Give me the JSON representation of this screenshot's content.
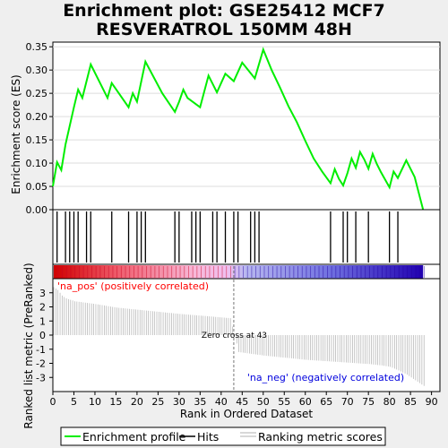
{
  "title_line1": "Enrichment plot: GSE25412 MCF7",
  "title_line2": "RESVERATROL 150MM 48H",
  "colors": {
    "enrichment_line": "#00ee00",
    "hits": "#000000",
    "ranking_metric": "#b0b0b0",
    "pos_label": "#ff0000",
    "neg_label": "#0000dd",
    "panel_bg": "#ffffff",
    "page_bg": "#efefef"
  },
  "chart_data": [
    {
      "type": "line",
      "name": "enrichment-profile",
      "ylabel": "Enrichment score (ES)",
      "ylim": [
        0.0,
        0.36
      ],
      "xlim": [
        0,
        92
      ],
      "yticks": [
        0.0,
        0.05,
        0.1,
        0.15,
        0.2,
        0.25,
        0.3,
        0.35
      ],
      "ytick_labels": [
        "0.00",
        "0.05",
        "0.10",
        "0.15",
        "0.20",
        "0.25",
        "0.30",
        "0.35"
      ],
      "x": [
        0,
        1,
        2,
        3,
        5,
        6,
        7,
        9,
        13,
        14,
        18,
        19,
        20,
        22,
        26,
        29,
        30,
        31,
        32,
        35,
        37,
        38,
        39,
        40,
        41,
        43,
        45,
        48,
        50,
        52,
        54,
        56,
        58,
        60,
        62,
        64,
        66,
        67,
        68,
        69,
        70,
        71,
        72,
        73,
        74,
        75,
        76,
        77,
        78,
        79,
        80,
        81,
        82,
        84,
        86,
        88
      ],
      "y": [
        0.05,
        0.102,
        0.085,
        0.14,
        0.22,
        0.258,
        0.24,
        0.312,
        0.24,
        0.272,
        0.22,
        0.25,
        0.232,
        0.318,
        0.25,
        0.21,
        0.232,
        0.258,
        0.24,
        0.22,
        0.288,
        0.27,
        0.252,
        0.272,
        0.292,
        0.276,
        0.316,
        0.282,
        0.344,
        0.3,
        0.262,
        0.222,
        0.188,
        0.148,
        0.11,
        0.082,
        0.057,
        0.087,
        0.066,
        0.052,
        0.078,
        0.11,
        0.09,
        0.124,
        0.108,
        0.088,
        0.12,
        0.098,
        0.08,
        0.064,
        0.048,
        0.082,
        0.068,
        0.106,
        0.07,
        0.0
      ]
    },
    {
      "type": "scatter",
      "name": "hits",
      "x": [
        1,
        3,
        4,
        5,
        6,
        8,
        9,
        14,
        18,
        20,
        21,
        22,
        29,
        30,
        33,
        34,
        35,
        38,
        39,
        41,
        43,
        44,
        47,
        48,
        49,
        66,
        69,
        70,
        72,
        75,
        80,
        82
      ]
    },
    {
      "type": "area",
      "name": "ranking-metric",
      "ylabel": "Ranked list metric (PreRanked)",
      "xlabel": "Rank in Ordered Dataset",
      "ylim": [
        -4.0,
        4.0
      ],
      "xlim": [
        0,
        92
      ],
      "yticks": [
        -3,
        -2,
        -1,
        0,
        1,
        2,
        3
      ],
      "ytick_labels": [
        "-3",
        "-2",
        "-1",
        "0",
        "1",
        "2",
        "3"
      ],
      "xticks": [
        0,
        5,
        10,
        15,
        20,
        25,
        30,
        35,
        40,
        45,
        50,
        55,
        60,
        65,
        70,
        75,
        80,
        85,
        90
      ],
      "xtick_labels": [
        "0",
        "5",
        "10",
        "15",
        "20",
        "25",
        "30",
        "35",
        "40",
        "45",
        "50",
        "55",
        "60",
        "65",
        "70",
        "75",
        "80",
        "85",
        "90"
      ],
      "x": [
        0,
        1,
        2,
        3,
        5,
        10,
        15,
        20,
        25,
        30,
        35,
        40,
        42,
        43,
        44,
        50,
        55,
        60,
        65,
        70,
        75,
        78,
        80,
        82,
        84,
        86,
        88
      ],
      "y": [
        3.4,
        3.2,
        2.8,
        2.6,
        2.4,
        2.2,
        1.95,
        1.8,
        1.65,
        1.5,
        1.38,
        1.25,
        1.2,
        0.0,
        -1.2,
        -1.45,
        -1.6,
        -1.75,
        -1.85,
        -1.95,
        -2.05,
        -2.15,
        -2.25,
        -2.5,
        -2.8,
        -3.2,
        -3.6
      ],
      "annotations": [
        "Zero cross at 43",
        "'na_pos' (positively correlated)",
        "'na_neg' (negatively correlated)"
      ],
      "zero_cross": 43
    }
  ],
  "legend": {
    "items": [
      {
        "label": "Enrichment profile",
        "color": "#00ee00"
      },
      {
        "label": "Hits",
        "color": "#000000"
      },
      {
        "label": "Ranking metric scores",
        "color": "#b0b0b0"
      }
    ]
  }
}
